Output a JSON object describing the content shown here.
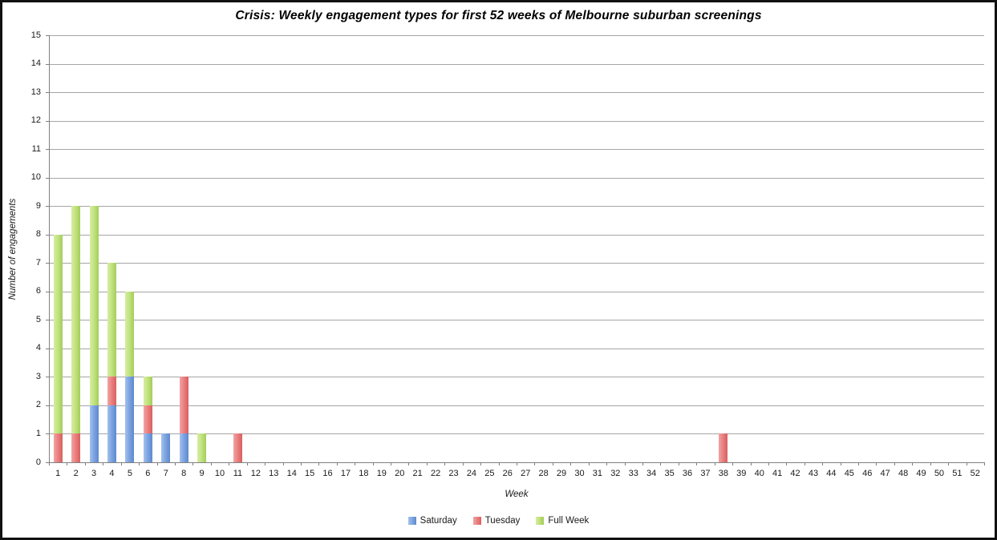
{
  "chart_data": {
    "type": "bar",
    "stacked": true,
    "title": "Crisis: Weekly engagement types for first 52 weeks of Melbourne suburban screenings",
    "xlabel": "Week",
    "ylabel": "Number of engagements",
    "categories": [
      "1",
      "2",
      "3",
      "4",
      "5",
      "6",
      "7",
      "8",
      "9",
      "10",
      "11",
      "12",
      "13",
      "14",
      "15",
      "16",
      "17",
      "18",
      "19",
      "20",
      "21",
      "22",
      "23",
      "24",
      "25",
      "26",
      "27",
      "28",
      "29",
      "30",
      "31",
      "32",
      "33",
      "34",
      "35",
      "36",
      "37",
      "38",
      "39",
      "40",
      "41",
      "42",
      "43",
      "44",
      "45",
      "46",
      "47",
      "48",
      "49",
      "50",
      "51",
      "52"
    ],
    "series": [
      {
        "name": "Saturday",
        "color_light": "#a2c2ee",
        "color_mid": "#7fa4e0",
        "color_dark": "#5d89cf",
        "values": [
          0,
          0,
          2,
          2,
          3,
          1,
          1,
          1,
          0,
          0,
          0,
          0,
          0,
          0,
          0,
          0,
          0,
          0,
          0,
          0,
          0,
          0,
          0,
          0,
          0,
          0,
          0,
          0,
          0,
          0,
          0,
          0,
          0,
          0,
          0,
          0,
          0,
          0,
          0,
          0,
          0,
          0,
          0,
          0,
          0,
          0,
          0,
          0,
          0,
          0,
          0,
          0
        ]
      },
      {
        "name": "Tuesday",
        "color_light": "#f3a3a3",
        "color_mid": "#ea8282",
        "color_dark": "#d95f5f",
        "values": [
          1,
          1,
          0,
          1,
          0,
          1,
          0,
          2,
          0,
          0,
          1,
          0,
          0,
          0,
          0,
          0,
          0,
          0,
          0,
          0,
          0,
          0,
          0,
          0,
          0,
          0,
          0,
          0,
          0,
          0,
          0,
          0,
          0,
          0,
          0,
          0,
          0,
          1,
          0,
          0,
          0,
          0,
          0,
          0,
          0,
          0,
          0,
          0,
          0,
          0,
          0,
          0
        ]
      },
      {
        "name": "Full Week",
        "color_light": "#d6ee9f",
        "color_mid": "#c3e383",
        "color_dark": "#a3cd58",
        "values": [
          7,
          8,
          7,
          4,
          3,
          1,
          0,
          0,
          1,
          0,
          0,
          0,
          0,
          0,
          0,
          0,
          0,
          0,
          0,
          0,
          0,
          0,
          0,
          0,
          0,
          0,
          0,
          0,
          0,
          0,
          0,
          0,
          0,
          0,
          0,
          0,
          0,
          0,
          0,
          0,
          0,
          0,
          0,
          0,
          0,
          0,
          0,
          0,
          0,
          0,
          0,
          0
        ]
      }
    ],
    "ylim": [
      0,
      15
    ],
    "ytick_step": 1,
    "grid": true,
    "legend_position": "bottom"
  }
}
